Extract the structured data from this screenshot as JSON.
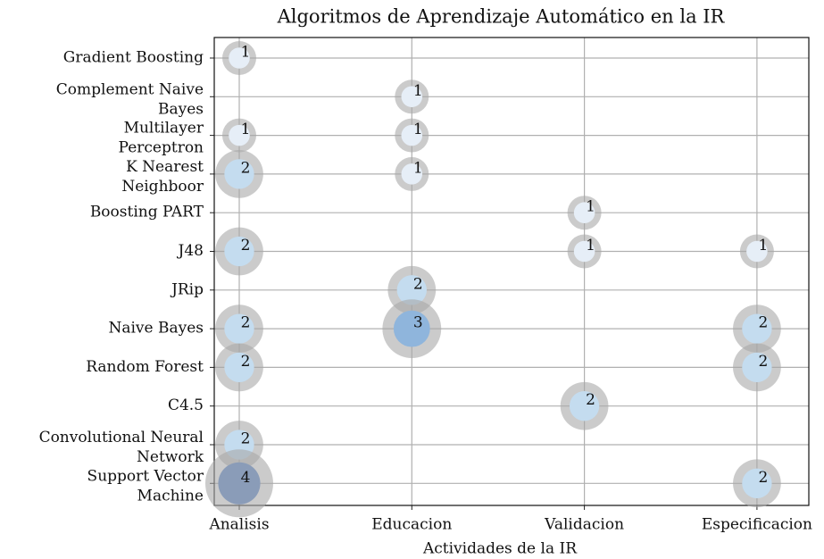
{
  "chart_data": {
    "type": "bubble",
    "title": "Algoritmos de Aprendizaje Automático en la IR",
    "x_label": "Actividades de la IR",
    "categories": [
      "Analisis",
      "Educacion",
      "Validacion",
      "Especificacion"
    ],
    "y_categories": [
      "Gradient Boosting",
      "Complement Naive\nBayes",
      "Multilayer\nPerceptron",
      "K Nearest\nNeighboor",
      "Boosting PART",
      "J48",
      "JRip",
      "Naive Bayes",
      "Random Forest",
      "C4.5",
      "Convolutional Neural\nNetwork",
      "Support Vector\nMachine"
    ],
    "grid": true,
    "ring_color": "#a9a9a9",
    "points": [
      {
        "x": "Analisis",
        "y": "Gradient Boosting",
        "value": 1,
        "color": "#e6eef7"
      },
      {
        "x": "Analisis",
        "y": "Multilayer\nPerceptron",
        "value": 1,
        "color": "#e6eef7"
      },
      {
        "x": "Analisis",
        "y": "K Nearest\nNeighboor",
        "value": 2,
        "color": "#c4dcef"
      },
      {
        "x": "Analisis",
        "y": "J48",
        "value": 2,
        "color": "#c4dcef"
      },
      {
        "x": "Analisis",
        "y": "Naive Bayes",
        "value": 2,
        "color": "#c4dcef"
      },
      {
        "x": "Analisis",
        "y": "Random Forest",
        "value": 2,
        "color": "#c4dcef"
      },
      {
        "x": "Analisis",
        "y": "Convolutional Neural\nNetwork",
        "value": 2,
        "color": "#c4dcef"
      },
      {
        "x": "Analisis",
        "y": "Support Vector\nMachine",
        "value": 4,
        "color": "#8a9cb8"
      },
      {
        "x": "Educacion",
        "y": "Complement Naive\nBayes",
        "value": 1,
        "color": "#e6eef7"
      },
      {
        "x": "Educacion",
        "y": "Multilayer\nPerceptron",
        "value": 1,
        "color": "#e6eef7"
      },
      {
        "x": "Educacion",
        "y": "K Nearest\nNeighboor",
        "value": 1,
        "color": "#e6eef7"
      },
      {
        "x": "Educacion",
        "y": "JRip",
        "value": 2,
        "color": "#c4dcef"
      },
      {
        "x": "Educacion",
        "y": "Naive Bayes",
        "value": 3,
        "color": "#8fb5dc"
      },
      {
        "x": "Validacion",
        "y": "Boosting PART",
        "value": 1,
        "color": "#e6eef7"
      },
      {
        "x": "Validacion",
        "y": "J48",
        "value": 1,
        "color": "#e6eef7"
      },
      {
        "x": "Validacion",
        "y": "C4.5",
        "value": 2,
        "color": "#c4dcef"
      },
      {
        "x": "Especificacion",
        "y": "J48",
        "value": 1,
        "color": "#e6eef7"
      },
      {
        "x": "Especificacion",
        "y": "Naive Bayes",
        "value": 2,
        "color": "#c4dcef"
      },
      {
        "x": "Especificacion",
        "y": "Random Forest",
        "value": 2,
        "color": "#c4dcef"
      },
      {
        "x": "Especificacion",
        "y": "Support Vector\nMachine",
        "value": 2,
        "color": "#c4dcef"
      }
    ]
  }
}
